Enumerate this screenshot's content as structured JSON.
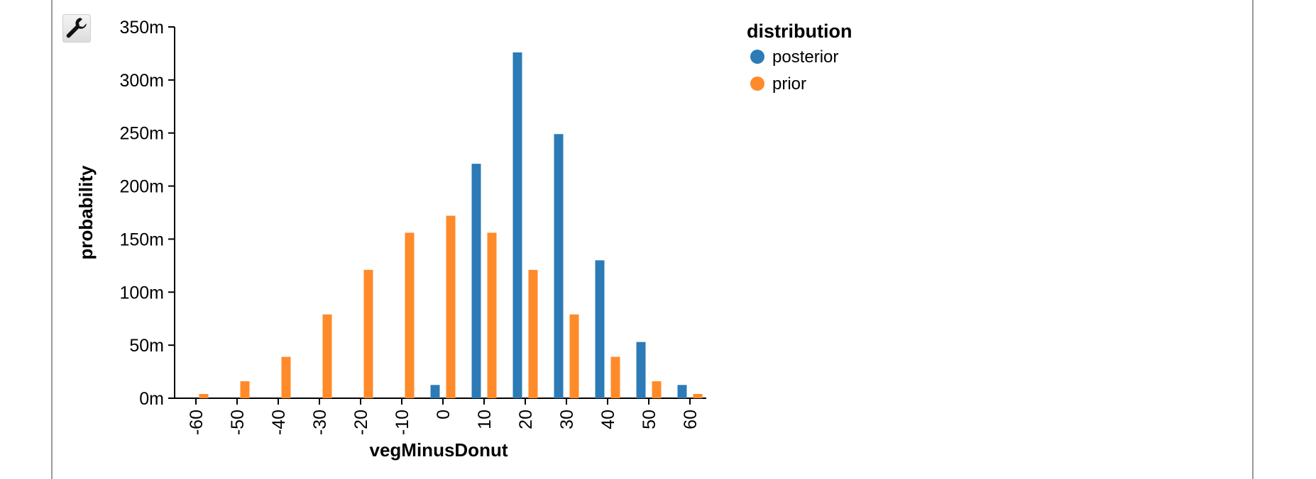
{
  "toolbar": {
    "settings_icon": "wrench-icon"
  },
  "chart_data": {
    "type": "bar",
    "xlabel": "vegMinusDonut",
    "ylabel": "probability",
    "categories": [
      "-60",
      "-50",
      "-40",
      "-30",
      "-20",
      "-10",
      "0",
      "10",
      "20",
      "30",
      "40",
      "50",
      "60"
    ],
    "y_ticks": [
      "0m",
      "50m",
      "100m",
      "150m",
      "200m",
      "250m",
      "300m",
      "350m"
    ],
    "ylim": [
      0,
      350
    ],
    "y_unit": "m",
    "legend": {
      "title": "distribution",
      "position": "top-right"
    },
    "series": [
      {
        "name": "posterior",
        "color": "#2c7bb6",
        "values": [
          0,
          0,
          0,
          0,
          0,
          0,
          12.5,
          221,
          326,
          249,
          130,
          53,
          12.5
        ]
      },
      {
        "name": "prior",
        "color": "#ff8a2a",
        "values": [
          4,
          16,
          39,
          79,
          121,
          156,
          172,
          156,
          121,
          79,
          39,
          16,
          4
        ]
      }
    ]
  }
}
